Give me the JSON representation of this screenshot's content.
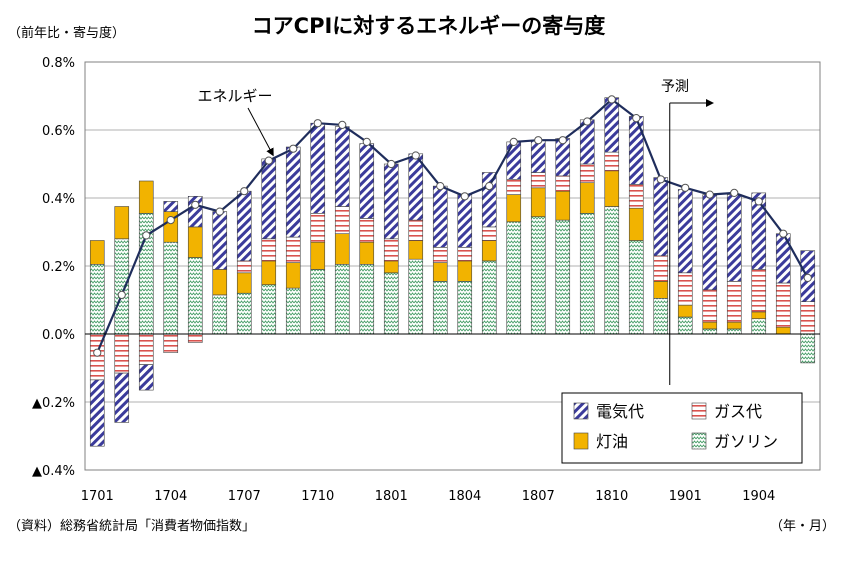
{
  "page": {
    "title": "コアCPIに対するエネルギーの寄与度",
    "unit_label": "（前年比・寄与度）",
    "source": "（資料）総務省統計局「消費者物価指数」",
    "x_unit_label": "（年・月）"
  },
  "chart_data": {
    "type": "bar",
    "stacked": true,
    "title": "コアCPIに対するエネルギーの寄与度",
    "ylabel": "（前年比・寄与度）",
    "xlabel": "（年・月）",
    "ylim": [
      -0.4,
      0.8
    ],
    "y_ticks": [
      {
        "value": 0.8,
        "label": "0.8%"
      },
      {
        "value": 0.6,
        "label": "0.6%"
      },
      {
        "value": 0.4,
        "label": "0.4%"
      },
      {
        "value": 0.2,
        "label": "0.2%"
      },
      {
        "value": 0.0,
        "label": "0.0%"
      },
      {
        "value": -0.2,
        "label": "▲0.2%"
      },
      {
        "value": -0.4,
        "label": "▲0.4%"
      }
    ],
    "x_tick_labels": [
      {
        "index": 0,
        "label": "1701"
      },
      {
        "index": 3,
        "label": "1704"
      },
      {
        "index": 6,
        "label": "1707"
      },
      {
        "index": 9,
        "label": "1710"
      },
      {
        "index": 12,
        "label": "1801"
      },
      {
        "index": 15,
        "label": "1804"
      },
      {
        "index": 18,
        "label": "1807"
      },
      {
        "index": 21,
        "label": "1810"
      },
      {
        "index": 24,
        "label": "1901"
      },
      {
        "index": 27,
        "label": "1904"
      }
    ],
    "categories": [
      "1701",
      "1702",
      "1703",
      "1704",
      "1705",
      "1706",
      "1707",
      "1708",
      "1709",
      "1710",
      "1711",
      "1712",
      "1801",
      "1802",
      "1803",
      "1804",
      "1805",
      "1806",
      "1807",
      "1808",
      "1809",
      "1810",
      "1811",
      "1812",
      "1901",
      "1902",
      "1903",
      "1904",
      "1905",
      "1906"
    ],
    "series": [
      {
        "name": "ガソリン",
        "pattern": "gasoline",
        "values": [
          0.205,
          0.28,
          0.355,
          0.27,
          0.225,
          0.115,
          0.12,
          0.145,
          0.135,
          0.19,
          0.205,
          0.205,
          0.18,
          0.22,
          0.155,
          0.155,
          0.215,
          0.33,
          0.345,
          0.335,
          0.355,
          0.375,
          0.275,
          0.105,
          0.05,
          0.015,
          0.015,
          0.045,
          0.0,
          -0.085
        ]
      },
      {
        "name": "灯油",
        "pattern": "kerosene",
        "values": [
          0.07,
          0.095,
          0.095,
          0.09,
          0.09,
          0.075,
          0.06,
          0.07,
          0.075,
          0.08,
          0.09,
          0.065,
          0.035,
          0.055,
          0.055,
          0.06,
          0.06,
          0.08,
          0.085,
          0.085,
          0.09,
          0.105,
          0.095,
          0.05,
          0.035,
          0.02,
          0.02,
          0.02,
          0.02,
          0.0
        ]
      },
      {
        "name": "ガス代",
        "pattern": "gas",
        "values": [
          -0.135,
          -0.115,
          -0.09,
          -0.055,
          -0.025,
          0.0,
          0.035,
          0.065,
          0.075,
          0.085,
          0.08,
          0.07,
          0.065,
          0.06,
          0.045,
          0.04,
          0.04,
          0.045,
          0.045,
          0.045,
          0.055,
          0.055,
          0.07,
          0.075,
          0.095,
          0.095,
          0.12,
          0.125,
          0.13,
          0.095
        ]
      },
      {
        "name": "電気代",
        "pattern": "electricity",
        "values": [
          -0.195,
          -0.145,
          -0.075,
          0.03,
          0.09,
          0.17,
          0.205,
          0.235,
          0.265,
          0.265,
          0.235,
          0.22,
          0.22,
          0.195,
          0.18,
          0.155,
          0.16,
          0.11,
          0.095,
          0.11,
          0.13,
          0.16,
          0.2,
          0.23,
          0.245,
          0.28,
          0.255,
          0.225,
          0.145,
          0.15
        ]
      }
    ],
    "line": {
      "name": "エネルギー",
      "values": [
        -0.055,
        0.115,
        0.29,
        0.335,
        0.38,
        0.36,
        0.42,
        0.51,
        0.545,
        0.62,
        0.615,
        0.565,
        0.5,
        0.525,
        0.435,
        0.405,
        0.435,
        0.565,
        0.57,
        0.57,
        0.625,
        0.69,
        0.635,
        0.455,
        0.43,
        0.41,
        0.415,
        0.39,
        0.295,
        0.165
      ]
    },
    "annotations": [
      {
        "text": "エネルギー",
        "points_to": "1710"
      },
      {
        "text": "予測",
        "from": "1812"
      }
    ],
    "legend_position": "bottom-right",
    "grid": true
  },
  "colors": {
    "line": "#1f2d5c",
    "electricity": "#3b3b9b",
    "gas": "#d9534f",
    "kerosene": "#f2b300",
    "gasoline": "#4aa06a",
    "grid": "#b0b0b0"
  }
}
